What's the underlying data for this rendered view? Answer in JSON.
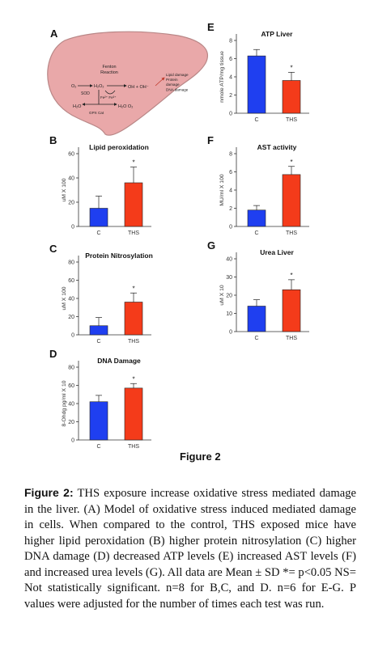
{
  "colors": {
    "control": "#1f3ff0",
    "ths": "#f43b1a",
    "liver": "#e9a8a9",
    "liver_stroke": "#b98787"
  },
  "panel_a": {
    "letter": "A",
    "labels": {
      "o2": "O₂",
      "sod": "SOD",
      "h2o2": "H₂O₂",
      "fenton": "Fenton\nReaction",
      "fe": "Fe²⁺ Fe³⁺",
      "oh": "OH + OH⁻",
      "h2o": "H₂O",
      "gpx_cat": "GPX   Cat",
      "h2o_o2": "H₂O  O₂",
      "damage": "Lipid damage\nProtein\ndamage\nDNA damage"
    }
  },
  "figure_label": "Figure 2",
  "caption": {
    "head": "Figure 2:",
    "body": " THS exposure increase oxidative stress mediated damage in the liver. (A) Model of oxidative stress induced mediated damage in cells. When compared to the control, THS exposed mice have higher lipid peroxidation (B) higher protein nitrosylation (C) higher DNA damage (D) decreased ATP levels (E) increased AST levels (F) and increased urea levels (G). All data are Mean ± SD *= p<0.05 NS= Not statistically significant. n=8 for B,C, and D. n=6 for E-G. P values were adjusted for the number of times each test was run."
  },
  "chart_data": [
    {
      "panel": "B",
      "type": "bar",
      "title": "Lipid peroxidation",
      "ylabel": "uM X 100",
      "categories": [
        "C",
        "THS"
      ],
      "values": [
        15,
        36
      ],
      "errors": [
        10,
        13
      ],
      "ylim": [
        0,
        60
      ],
      "yticks": [
        "0",
        "20",
        "40",
        "60"
      ],
      "ytick_values": [
        0,
        20,
        40,
        60
      ],
      "annotations": [
        "",
        "*"
      ]
    },
    {
      "panel": "C",
      "type": "bar",
      "title": "Protein Nitrosylation",
      "ylabel": "uM X 100",
      "categories": [
        "C",
        "THS"
      ],
      "values": [
        10,
        36
      ],
      "errors": [
        9,
        10
      ],
      "ylim": [
        0,
        80
      ],
      "yticks": [
        "0",
        "20",
        "40",
        "60",
        "80"
      ],
      "ytick_values": [
        0,
        20,
        40,
        60,
        80
      ],
      "annotations": [
        "",
        "*"
      ]
    },
    {
      "panel": "D",
      "type": "bar",
      "title": "DNA Damage",
      "ylabel": "8-Ohdg pg/ml X 10",
      "categories": [
        "C",
        "THS"
      ],
      "values": [
        42,
        57
      ],
      "errors": [
        7,
        5
      ],
      "ylim": [
        0,
        80
      ],
      "yticks": [
        "0",
        "20",
        "40",
        "60",
        "80"
      ],
      "ytick_values": [
        0,
        20,
        40,
        60,
        80
      ],
      "annotations": [
        "",
        "*"
      ]
    },
    {
      "panel": "E",
      "type": "bar",
      "title": "ATP Liver",
      "ylabel": "nmole ATP/mg tissue",
      "categories": [
        "C",
        "THS"
      ],
      "values": [
        6.3,
        3.6
      ],
      "errors": [
        0.7,
        0.9
      ],
      "ylim": [
        0,
        8
      ],
      "yticks": [
        "0",
        "2",
        "4",
        "6",
        "8"
      ],
      "ytick_values": [
        0,
        2,
        4,
        6,
        8
      ],
      "annotations": [
        "",
        "*"
      ]
    },
    {
      "panel": "F",
      "type": "bar",
      "title": "AST activity",
      "ylabel": "MU/ml X 100",
      "categories": [
        "C",
        "THS"
      ],
      "values": [
        1.8,
        5.7
      ],
      "errors": [
        0.5,
        0.9
      ],
      "ylim": [
        0,
        8
      ],
      "yticks": [
        "0",
        "2",
        "4",
        "6",
        "8"
      ],
      "ytick_values": [
        0,
        2,
        4,
        6,
        8
      ],
      "annotations": [
        "",
        "*"
      ]
    },
    {
      "panel": "G",
      "type": "bar",
      "title": "Urea Liver",
      "ylabel": "uM X 10",
      "categories": [
        "C",
        "THS"
      ],
      "values": [
        14,
        23
      ],
      "errors": [
        3.5,
        5.5
      ],
      "ylim": [
        0,
        40
      ],
      "yticks": [
        "0",
        "10",
        "20",
        "30",
        "40"
      ],
      "ytick_values": [
        0,
        10,
        20,
        30,
        40
      ],
      "annotations": [
        "",
        "*"
      ]
    }
  ]
}
